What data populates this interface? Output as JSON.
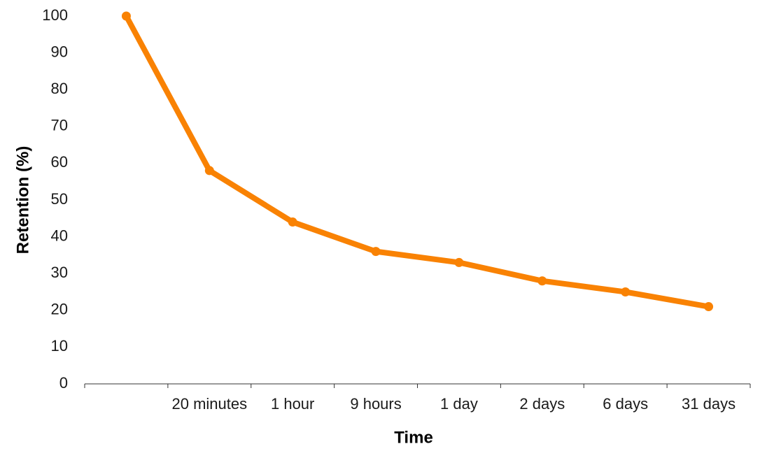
{
  "chart_data": {
    "type": "line",
    "x_label": "Time",
    "y_label": "Retention (%)",
    "categories": [
      null,
      "20 minutes",
      "1 hour",
      "9 hours",
      "1 day",
      "2 days",
      "6 days",
      "31 days"
    ],
    "values": [
      100,
      58,
      44,
      36,
      33,
      28,
      25,
      21
    ],
    "color": "#f98203",
    "ylim": [
      0,
      100
    ],
    "yticks": [
      0,
      10,
      20,
      30,
      40,
      50,
      60,
      70,
      80,
      90,
      100
    ],
    "grid": false
  }
}
